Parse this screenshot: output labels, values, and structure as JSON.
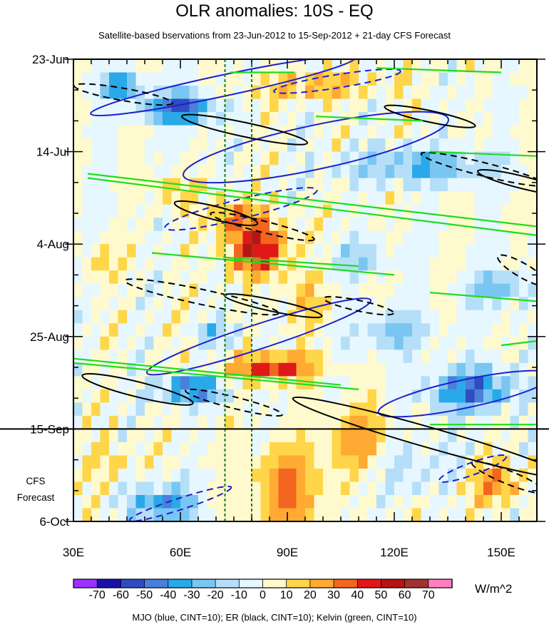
{
  "chart_data": {
    "type": "heatmap",
    "title": "OLR anomalies: 10S - EQ",
    "subtitle": "Satellite-based bservations from 23-Jun-2012 to 15-Sep-2012 + 21-day CFS Forecast",
    "x_range_degE": [
      30,
      160
    ],
    "x_ticks": [
      {
        "value": 30,
        "label": "30E"
      },
      {
        "value": 60,
        "label": "60E"
      },
      {
        "value": 90,
        "label": "90E"
      },
      {
        "value": 120,
        "label": "120E"
      },
      {
        "value": 150,
        "label": "150E"
      }
    ],
    "y_range_days": [
      0,
      105
    ],
    "y_ticks": [
      {
        "day": 0,
        "label": "23-Jun"
      },
      {
        "day": 21,
        "label": "14-Jul"
      },
      {
        "day": 42,
        "label": "4-Aug"
      },
      {
        "day": 63,
        "label": "25-Aug"
      },
      {
        "day": 84,
        "label": "15-Sep"
      },
      {
        "day": 105,
        "label": "6-Oct"
      }
    ],
    "forecast_label_lines": [
      "CFS",
      "Forecast"
    ],
    "forecast_start_day": 84,
    "reference_longitudes_degE": [
      72.5,
      80
    ],
    "colorbar": {
      "units": "W/m^2",
      "labels": [
        "-70",
        "-60",
        "-50",
        "-40",
        "-30",
        "-20",
        "-10",
        "0",
        "10",
        "20",
        "30",
        "40",
        "50",
        "60",
        "70"
      ],
      "colors": [
        "#9b30ff",
        "#1a10a8",
        "#2f4cc0",
        "#4a7fdc",
        "#2aa9e8",
        "#79c6f2",
        "#b5dff8",
        "#e6f7ff",
        "#fffacd",
        "#ffd54a",
        "#ffaa33",
        "#f2661f",
        "#e01818",
        "#b81414",
        "#a03232",
        "#ff80c0"
      ]
    },
    "grid": {
      "lon_step": 2.5,
      "day_step": 3,
      "anomaly_blobs": [
        {
          "lon": 60,
          "day": 11,
          "sx": 10,
          "sy": 3.5,
          "amp": -55
        },
        {
          "lon": 43,
          "day": 6,
          "sx": 6,
          "sy": 3,
          "amp": -40
        },
        {
          "lon": 98,
          "day": 6,
          "sx": 16,
          "sy": 3,
          "amp": 24
        },
        {
          "lon": 82,
          "day": 43,
          "sx": 9,
          "sy": 6,
          "amp": 48
        },
        {
          "lon": 75,
          "day": 36,
          "sx": 6,
          "sy": 4,
          "amp": 30
        },
        {
          "lon": 86,
          "day": 70,
          "sx": 12,
          "sy": 3,
          "amp": 45
        },
        {
          "lon": 90,
          "day": 98,
          "sx": 10,
          "sy": 10,
          "amp": 32
        },
        {
          "lon": 63,
          "day": 75,
          "sx": 9,
          "sy": 3,
          "amp": -48
        },
        {
          "lon": 55,
          "day": 101,
          "sx": 9,
          "sy": 4,
          "amp": -40
        },
        {
          "lon": 142,
          "day": 75,
          "sx": 12,
          "sy": 5,
          "amp": -46
        },
        {
          "lon": 128,
          "day": 24,
          "sx": 20,
          "sy": 4,
          "amp": -30
        },
        {
          "lon": 150,
          "day": 52,
          "sx": 10,
          "sy": 4,
          "amp": -24
        },
        {
          "lon": 120,
          "day": 62,
          "sx": 12,
          "sy": 5,
          "amp": -22
        },
        {
          "lon": 110,
          "day": 45,
          "sx": 9,
          "sy": 4,
          "amp": -18
        },
        {
          "lon": 110,
          "day": 86,
          "sx": 9,
          "sy": 8,
          "amp": 24
        },
        {
          "lon": 148,
          "day": 96,
          "sx": 10,
          "sy": 5,
          "amp": 26
        },
        {
          "lon": 38,
          "day": 46,
          "sx": 5,
          "sy": 5,
          "amp": 14
        },
        {
          "lon": 58,
          "day": 30,
          "sx": 6,
          "sy": 3,
          "amp": 18
        },
        {
          "lon": 95,
          "day": 55,
          "sx": 6,
          "sy": 6,
          "amp": 16
        },
        {
          "lon": 128,
          "day": 93,
          "sx": 14,
          "sy": 6,
          "amp": -16
        },
        {
          "lon": 40,
          "day": 92,
          "sx": 8,
          "sy": 5,
          "amp": 10
        },
        {
          "lon": 70,
          "day": 62,
          "sx": 6,
          "sy": 3,
          "amp": -20
        }
      ]
    },
    "series": [
      {
        "name": "MJO",
        "color": "#1f1fcc",
        "ellipses": [
          {
            "lon": 72,
            "day": 6,
            "ax": 38,
            "ay": 2.4,
            "angle": -12,
            "dashed": false
          },
          {
            "lon": 98,
            "day": 20,
            "ax": 38,
            "ay": 5,
            "angle": -12,
            "dashed": false
          },
          {
            "lon": 82,
            "day": 63,
            "ax": 33,
            "ay": 2.8,
            "angle": -18,
            "dashed": false
          },
          {
            "lon": 140,
            "day": 76,
            "ax": 25,
            "ay": 3.2,
            "angle": -12,
            "dashed": false
          },
          {
            "lon": 77,
            "day": 34,
            "ax": 22,
            "ay": 2.2,
            "angle": -14,
            "dashed": true
          },
          {
            "lon": 104,
            "day": 5,
            "ax": 18,
            "ay": 1.5,
            "angle": -9,
            "dashed": true
          },
          {
            "lon": 60,
            "day": 101,
            "ax": 15,
            "ay": 1.3,
            "angle": -18,
            "dashed": true
          },
          {
            "lon": 142,
            "day": 93,
            "ax": 10,
            "ay": 1.4,
            "angle": -20,
            "dashed": true
          }
        ]
      },
      {
        "name": "ER",
        "color": "#000000",
        "ellipses": [
          {
            "lon": 44,
            "day": 8,
            "ax": 14,
            "ay": 1.4,
            "angle": 10,
            "dashed": true
          },
          {
            "lon": 78,
            "day": 16,
            "ax": 18,
            "ay": 1.6,
            "angle": 12,
            "dashed": false
          },
          {
            "lon": 130,
            "day": 13,
            "ax": 13,
            "ay": 1.3,
            "angle": 12,
            "dashed": false
          },
          {
            "lon": 70,
            "day": 35,
            "ax": 12,
            "ay": 1.5,
            "angle": 14,
            "dashed": false
          },
          {
            "lon": 83,
            "day": 38,
            "ax": 15,
            "ay": 1.3,
            "angle": 14,
            "dashed": true
          },
          {
            "lon": 66,
            "day": 54,
            "ax": 22,
            "ay": 1.7,
            "angle": 12,
            "dashed": true
          },
          {
            "lon": 86,
            "day": 56,
            "ax": 14,
            "ay": 1.3,
            "angle": 12,
            "dashed": false
          },
          {
            "lon": 110,
            "day": 56,
            "ax": 10,
            "ay": 1.2,
            "angle": 12,
            "dashed": true
          },
          {
            "lon": 145,
            "day": 25,
            "ax": 18,
            "ay": 1.5,
            "angle": 14,
            "dashed": true
          },
          {
            "lon": 156,
            "day": 28,
            "ax": 13,
            "ay": 1.4,
            "angle": 14,
            "dashed": false
          },
          {
            "lon": 156,
            "day": 48,
            "ax": 8,
            "ay": 1.6,
            "angle": 30,
            "dashed": true
          },
          {
            "lon": 48,
            "day": 75,
            "ax": 16,
            "ay": 1.7,
            "angle": 14,
            "dashed": false
          },
          {
            "lon": 75,
            "day": 78,
            "ax": 14,
            "ay": 1.3,
            "angle": 14,
            "dashed": true
          },
          {
            "lon": 130,
            "day": 86,
            "ax": 40,
            "ay": 2.3,
            "angle": 16,
            "dashed": false
          },
          {
            "lon": 152,
            "day": 95,
            "ax": 11,
            "ay": 1.5,
            "angle": 22,
            "dashed": true
          }
        ]
      },
      {
        "name": "Kelvin",
        "color": "#1fdc1f",
        "lines": [
          {
            "lon1": 34,
            "day1": 26,
            "lon2": 160,
            "day2": 38
          },
          {
            "lon1": 34,
            "day1": 27,
            "lon2": 160,
            "day2": 40
          },
          {
            "lon1": 30,
            "day1": 68,
            "lon2": 105,
            "day2": 74
          },
          {
            "lon1": 30,
            "day1": 69,
            "lon2": 110,
            "day2": 75
          },
          {
            "lon1": 52,
            "day1": 44,
            "lon2": 120,
            "day2": 49
          },
          {
            "lon1": 72,
            "day1": 45,
            "lon2": 110,
            "day2": 47
          },
          {
            "lon1": 130,
            "day1": 53,
            "lon2": 160,
            "day2": 55
          },
          {
            "lon1": 130,
            "day1": 21,
            "lon2": 160,
            "day2": 22
          },
          {
            "lon1": 115,
            "day1": 2,
            "lon2": 150,
            "day2": 3
          },
          {
            "lon1": 98,
            "day1": 13,
            "lon2": 128,
            "day2": 14
          },
          {
            "lon1": 74,
            "day1": 3,
            "lon2": 92,
            "day2": 3
          },
          {
            "lon1": 130,
            "day1": 83,
            "lon2": 160,
            "day2": 83
          },
          {
            "lon1": 150,
            "day1": 65,
            "lon2": 160,
            "day2": 64
          }
        ]
      }
    ],
    "caption": "MJO (blue, CINT=10); ER (black, CINT=10); Kelvin (green, CINT=10)"
  }
}
